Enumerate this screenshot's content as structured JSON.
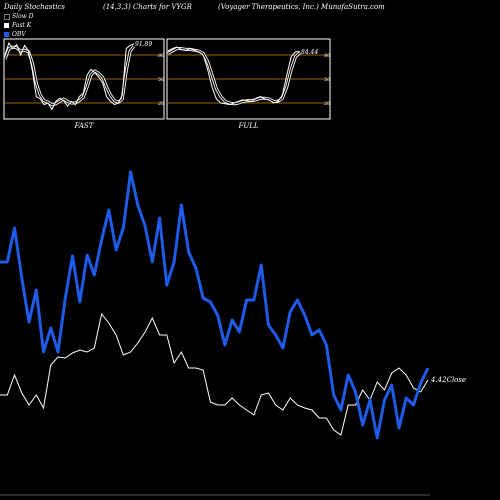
{
  "header": {
    "left": "Daily Stochastics",
    "center": "(14,3,3) Charts for VYGR",
    "right": "(Voyager Therapeutics, Inc.) MunafaSutra.com"
  },
  "legend": [
    {
      "label": "Slow D",
      "color": "#000000"
    },
    {
      "label": "Fast K",
      "color": "#ffffff"
    },
    {
      "label": "OBV",
      "color": "#1e5be8"
    }
  ],
  "chart_data": [
    {
      "type": "line",
      "name": "fast-stochastics-panel",
      "panel_label": "FAST",
      "last_value_label": "91.89",
      "ylim": [
        0,
        100
      ],
      "y_ticks": [
        "80",
        "50",
        "20"
      ],
      "series": [
        {
          "name": "Fast K",
          "values": [
            80,
            95,
            88,
            93,
            80,
            92,
            85,
            60,
            28,
            25,
            18,
            20,
            12,
            22,
            26,
            23,
            16,
            22,
            18,
            28,
            32,
            55,
            62,
            58,
            52,
            45,
            28,
            22,
            18,
            20,
            30,
            88,
            92,
            94
          ]
        },
        {
          "name": "Slow D",
          "values": [
            75,
            88,
            90,
            89,
            85,
            86,
            84,
            70,
            45,
            30,
            23,
            21,
            18,
            19,
            22,
            25,
            22,
            20,
            20,
            23,
            27,
            40,
            55,
            60,
            57,
            52,
            40,
            30,
            23,
            21,
            25,
            60,
            85,
            91
          ]
        }
      ]
    },
    {
      "type": "line",
      "name": "full-stochastics-panel",
      "panel_label": "FULL",
      "last_value_label": "84.44",
      "ylim": [
        0,
        100
      ],
      "y_ticks": [
        "80",
        "50",
        "20"
      ],
      "series": [
        {
          "name": "Full K",
          "values": [
            85,
            88,
            90,
            87,
            86,
            88,
            86,
            84,
            80,
            62,
            40,
            25,
            20,
            19,
            18,
            20,
            22,
            24,
            23,
            22,
            26,
            28,
            25,
            24,
            20,
            22,
            30,
            55,
            78,
            84,
            84
          ]
        },
        {
          "name": "Full D",
          "values": [
            82,
            85,
            88,
            88,
            87,
            87,
            86,
            85,
            82,
            72,
            55,
            38,
            28,
            22,
            20,
            19,
            20,
            22,
            23,
            23,
            24,
            26,
            26,
            25,
            22,
            22,
            26,
            40,
            62,
            78,
            83
          ]
        }
      ]
    },
    {
      "type": "line",
      "name": "price-obv-chart",
      "close_label": "4.42Close",
      "series": [
        {
          "name": "OBV",
          "values": [
            262,
            262,
            228,
            278,
            322,
            290,
            352,
            328,
            352,
            298,
            256,
            302,
            255,
            275,
            240,
            210,
            250,
            228,
            172,
            205,
            226,
            262,
            218,
            285,
            262,
            205,
            252,
            268,
            298,
            302,
            315,
            345,
            320,
            332,
            300,
            300,
            265,
            325,
            335,
            348,
            312,
            300,
            315,
            335,
            330,
            345,
            395,
            410,
            375,
            392,
            425,
            400,
            438,
            400,
            385,
            428,
            398,
            405,
            383,
            368
          ]
        },
        {
          "name": "Price",
          "values": [
            395,
            395,
            375,
            393,
            405,
            395,
            408,
            365,
            357,
            358,
            353,
            350,
            352,
            348,
            314,
            323,
            335,
            355,
            352,
            343,
            332,
            318,
            335,
            335,
            363,
            352,
            368,
            368,
            370,
            402,
            405,
            405,
            398,
            405,
            410,
            415,
            395,
            393,
            405,
            410,
            398,
            405,
            408,
            410,
            418,
            418,
            430,
            435,
            405,
            405,
            390,
            400,
            382,
            390,
            373,
            368,
            375,
            388,
            392,
            380
          ]
        }
      ]
    }
  ]
}
